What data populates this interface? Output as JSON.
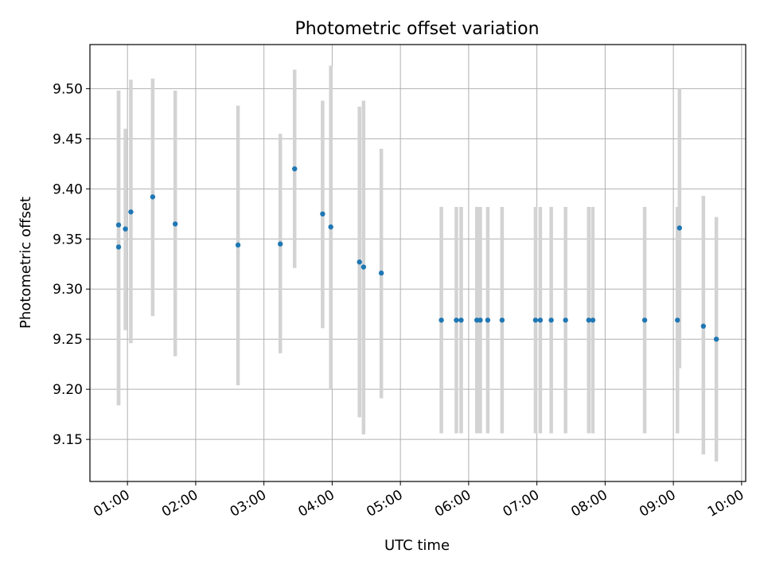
{
  "chart_data": {
    "type": "scatter",
    "title": "Photometric offset variation",
    "xlabel": "UTC time",
    "ylabel": "Photometric offset",
    "xlim": [
      0.45,
      10.06
    ],
    "ylim": [
      9.108,
      9.544
    ],
    "grid": true,
    "x_ticks": [
      "01:00",
      "02:00",
      "03:00",
      "04:00",
      "05:00",
      "06:00",
      "07:00",
      "08:00",
      "09:00",
      "10:00"
    ],
    "x_tick_values": [
      1,
      2,
      3,
      4,
      5,
      6,
      7,
      8,
      9,
      10
    ],
    "y_ticks": [
      "9.15",
      "9.20",
      "9.25",
      "9.30",
      "9.35",
      "9.40",
      "9.45",
      "9.50"
    ],
    "y_tick_values": [
      9.15,
      9.2,
      9.25,
      9.3,
      9.35,
      9.4,
      9.45,
      9.5
    ],
    "marker_color": "#1f77b4",
    "errorbar_color": "#d3d3d3",
    "series": [
      {
        "x_unit": "hours UTC",
        "points": [
          {
            "x": 0.87,
            "y": 9.364,
            "low": 9.184,
            "high": 9.498
          },
          {
            "x": 0.87,
            "y": 9.342,
            "low": 9.184,
            "high": 9.498
          },
          {
            "x": 0.97,
            "y": 9.36,
            "low": 9.259,
            "high": 9.46
          },
          {
            "x": 1.05,
            "y": 9.377,
            "low": 9.246,
            "high": 9.509
          },
          {
            "x": 1.37,
            "y": 9.392,
            "low": 9.273,
            "high": 9.51
          },
          {
            "x": 1.7,
            "y": 9.365,
            "low": 9.233,
            "high": 9.498
          },
          {
            "x": 2.62,
            "y": 9.344,
            "low": 9.204,
            "high": 9.483
          },
          {
            "x": 3.24,
            "y": 9.345,
            "low": 9.236,
            "high": 9.455
          },
          {
            "x": 3.45,
            "y": 9.42,
            "low": 9.321,
            "high": 9.519
          },
          {
            "x": 3.86,
            "y": 9.375,
            "low": 9.261,
            "high": 9.488
          },
          {
            "x": 3.98,
            "y": 9.362,
            "low": 9.2,
            "high": 9.523
          },
          {
            "x": 4.4,
            "y": 9.327,
            "low": 9.172,
            "high": 9.482
          },
          {
            "x": 4.46,
            "y": 9.322,
            "low": 9.155,
            "high": 9.488
          },
          {
            "x": 4.72,
            "y": 9.316,
            "low": 9.191,
            "high": 9.44
          },
          {
            "x": 5.6,
            "y": 9.269,
            "low": 9.156,
            "high": 9.382
          },
          {
            "x": 5.82,
            "y": 9.269,
            "low": 9.156,
            "high": 9.382
          },
          {
            "x": 5.89,
            "y": 9.269,
            "low": 9.156,
            "high": 9.382
          },
          {
            "x": 6.12,
            "y": 9.269,
            "low": 9.156,
            "high": 9.382
          },
          {
            "x": 6.17,
            "y": 9.269,
            "low": 9.156,
            "high": 9.382
          },
          {
            "x": 6.28,
            "y": 9.269,
            "low": 9.156,
            "high": 9.382
          },
          {
            "x": 6.49,
            "y": 9.269,
            "low": 9.156,
            "high": 9.382
          },
          {
            "x": 6.98,
            "y": 9.269,
            "low": 9.156,
            "high": 9.382
          },
          {
            "x": 7.05,
            "y": 9.269,
            "low": 9.156,
            "high": 9.382
          },
          {
            "x": 7.21,
            "y": 9.269,
            "low": 9.156,
            "high": 9.382
          },
          {
            "x": 7.42,
            "y": 9.269,
            "low": 9.156,
            "high": 9.382
          },
          {
            "x": 7.76,
            "y": 9.269,
            "low": 9.156,
            "high": 9.382
          },
          {
            "x": 7.82,
            "y": 9.269,
            "low": 9.156,
            "high": 9.382
          },
          {
            "x": 8.58,
            "y": 9.269,
            "low": 9.156,
            "high": 9.382
          },
          {
            "x": 9.06,
            "y": 9.269,
            "low": 9.156,
            "high": 9.382
          },
          {
            "x": 9.09,
            "y": 9.361,
            "low": 9.221,
            "high": 9.5
          },
          {
            "x": 9.44,
            "y": 9.263,
            "low": 9.135,
            "high": 9.393
          },
          {
            "x": 9.63,
            "y": 9.25,
            "low": 9.128,
            "high": 9.372
          }
        ]
      }
    ]
  }
}
